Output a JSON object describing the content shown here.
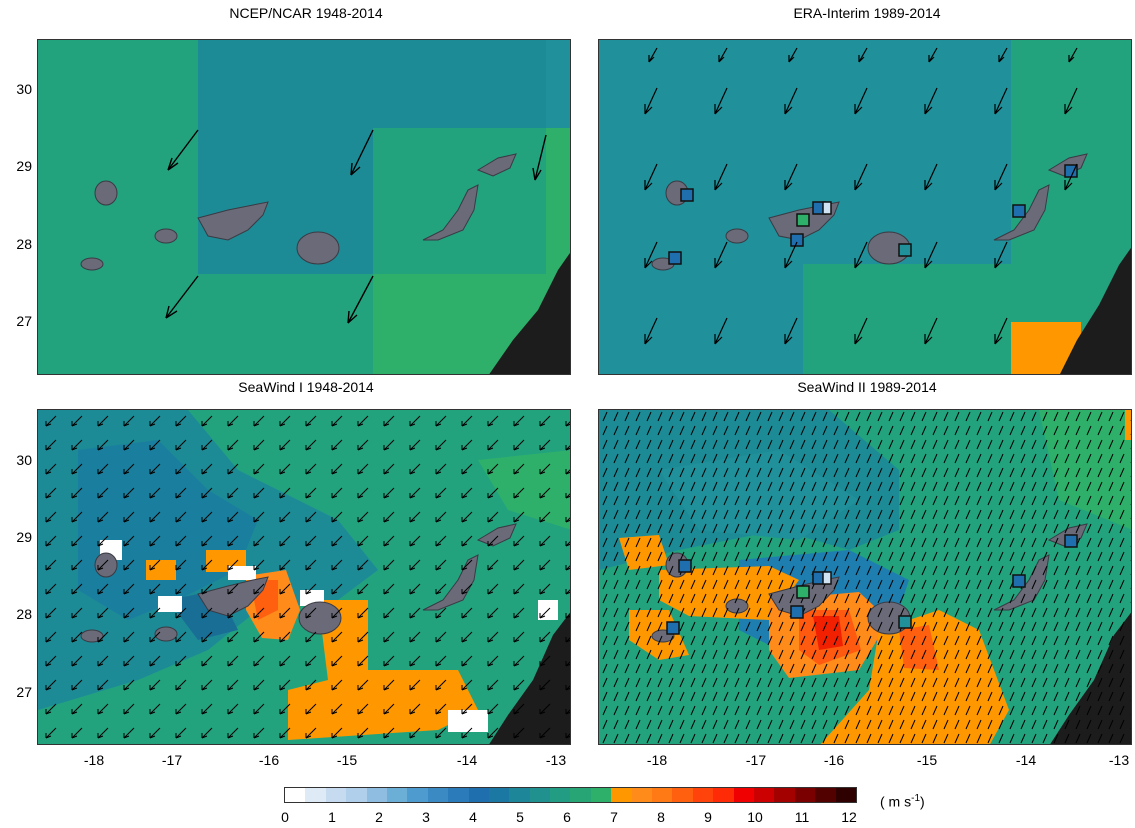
{
  "panels": [
    {
      "title": "NCEP/NCAR 1948-2014"
    },
    {
      "title": "ERA-Interim 1989-2014"
    },
    {
      "title": "SeaWind I 1948-2014"
    },
    {
      "title": "SeaWind II 1989-2014"
    }
  ],
  "y_ticks": [
    "30",
    "29",
    "28",
    "27"
  ],
  "x_ticks": [
    "-18",
    "-17",
    "-16",
    "-15",
    "-14",
    "-13"
  ],
  "colorbar": {
    "labels": [
      "0",
      "1",
      "2",
      "3",
      "4",
      "5",
      "6",
      "7",
      "8",
      "9",
      "10",
      "11",
      "12"
    ],
    "unit_text": "( m s",
    "unit_sup": "-1",
    "unit_close": ")",
    "colors": [
      "#ffffff",
      "#deebf7",
      "#c6dbef",
      "#afcfea",
      "#8fbde2",
      "#6baed6",
      "#4e9bd0",
      "#3b8ac4",
      "#2b7bbb",
      "#1f6eae",
      "#1b78a3",
      "#1d8699",
      "#20918f",
      "#229c83",
      "#27a574",
      "#2fb06a",
      "#ff9800",
      "#ff8c1a",
      "#ff7a14",
      "#ff6010",
      "#ff430a",
      "#ff2a06",
      "#f00000",
      "#cc0000",
      "#a30000",
      "#7a0000",
      "#520000",
      "#2e0000"
    ]
  },
  "map_colors": {
    "teal_dark": "#1a7f9e",
    "teal": "#20909a",
    "green": "#22a37e",
    "green_light": "#2fb06a",
    "orange": "#ff9800",
    "orange_red": "#ff5a10",
    "red": "#f02000",
    "blue_sq": "#1f6eae",
    "land": "#1c1c1c"
  }
}
